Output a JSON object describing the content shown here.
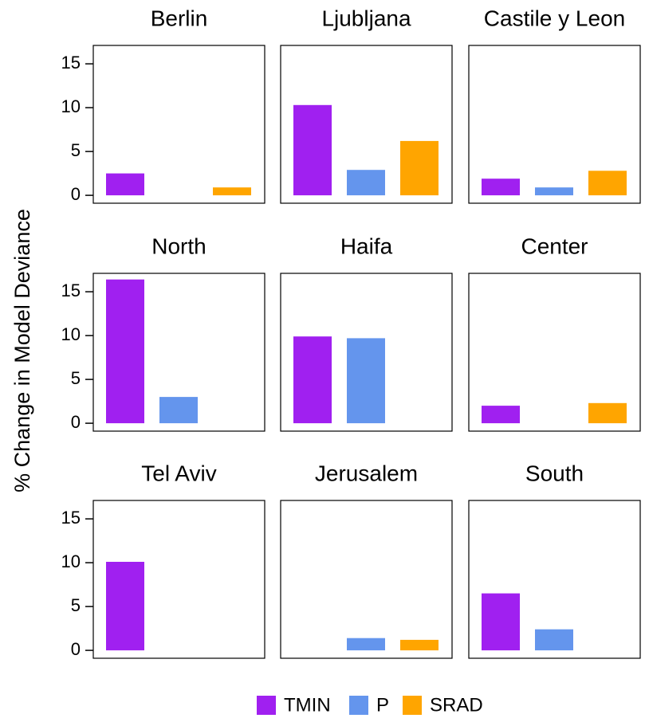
{
  "y_label": "% Change in Model Deviance",
  "legend": [
    {
      "name": "TMIN",
      "color": "#a020f0"
    },
    {
      "name": "P",
      "color": "#6495ed"
    },
    {
      "name": "SRAD",
      "color": "#ffa500"
    }
  ],
  "chart_data": [
    {
      "type": "bar",
      "title": "Berlin",
      "values": [
        2.5,
        null,
        0.9
      ],
      "ylim": [
        -0.9,
        17.1
      ],
      "yticks": [
        0,
        5,
        10,
        15
      ]
    },
    {
      "type": "bar",
      "title": "Ljubljana",
      "values": [
        10.3,
        2.9,
        6.2
      ],
      "ylim": [
        -0.9,
        17.1
      ]
    },
    {
      "type": "bar",
      "title": "Castile y Leon",
      "values": [
        1.9,
        0.9,
        2.8
      ],
      "ylim": [
        -0.9,
        17.1
      ]
    },
    {
      "type": "bar",
      "title": "North",
      "values": [
        16.4,
        3.0,
        null
      ],
      "ylim": [
        -0.9,
        17.1
      ],
      "yticks": [
        0,
        5,
        10,
        15
      ]
    },
    {
      "type": "bar",
      "title": "Haifa",
      "values": [
        9.9,
        9.7,
        null
      ],
      "ylim": [
        -0.9,
        17.1
      ]
    },
    {
      "type": "bar",
      "title": "Center",
      "values": [
        2.0,
        null,
        2.3
      ],
      "ylim": [
        -0.9,
        17.1
      ]
    },
    {
      "type": "bar",
      "title": "Tel Aviv",
      "values": [
        10.1,
        null,
        null
      ],
      "ylim": [
        -0.9,
        17.1
      ],
      "yticks": [
        0,
        5,
        10,
        15
      ]
    },
    {
      "type": "bar",
      "title": "Jerusalem",
      "values": [
        null,
        1.4,
        1.2
      ],
      "ylim": [
        -0.9,
        17.1
      ]
    },
    {
      "type": "bar",
      "title": "South",
      "values": [
        6.5,
        2.4,
        null
      ],
      "ylim": [
        -0.9,
        17.1
      ]
    }
  ]
}
